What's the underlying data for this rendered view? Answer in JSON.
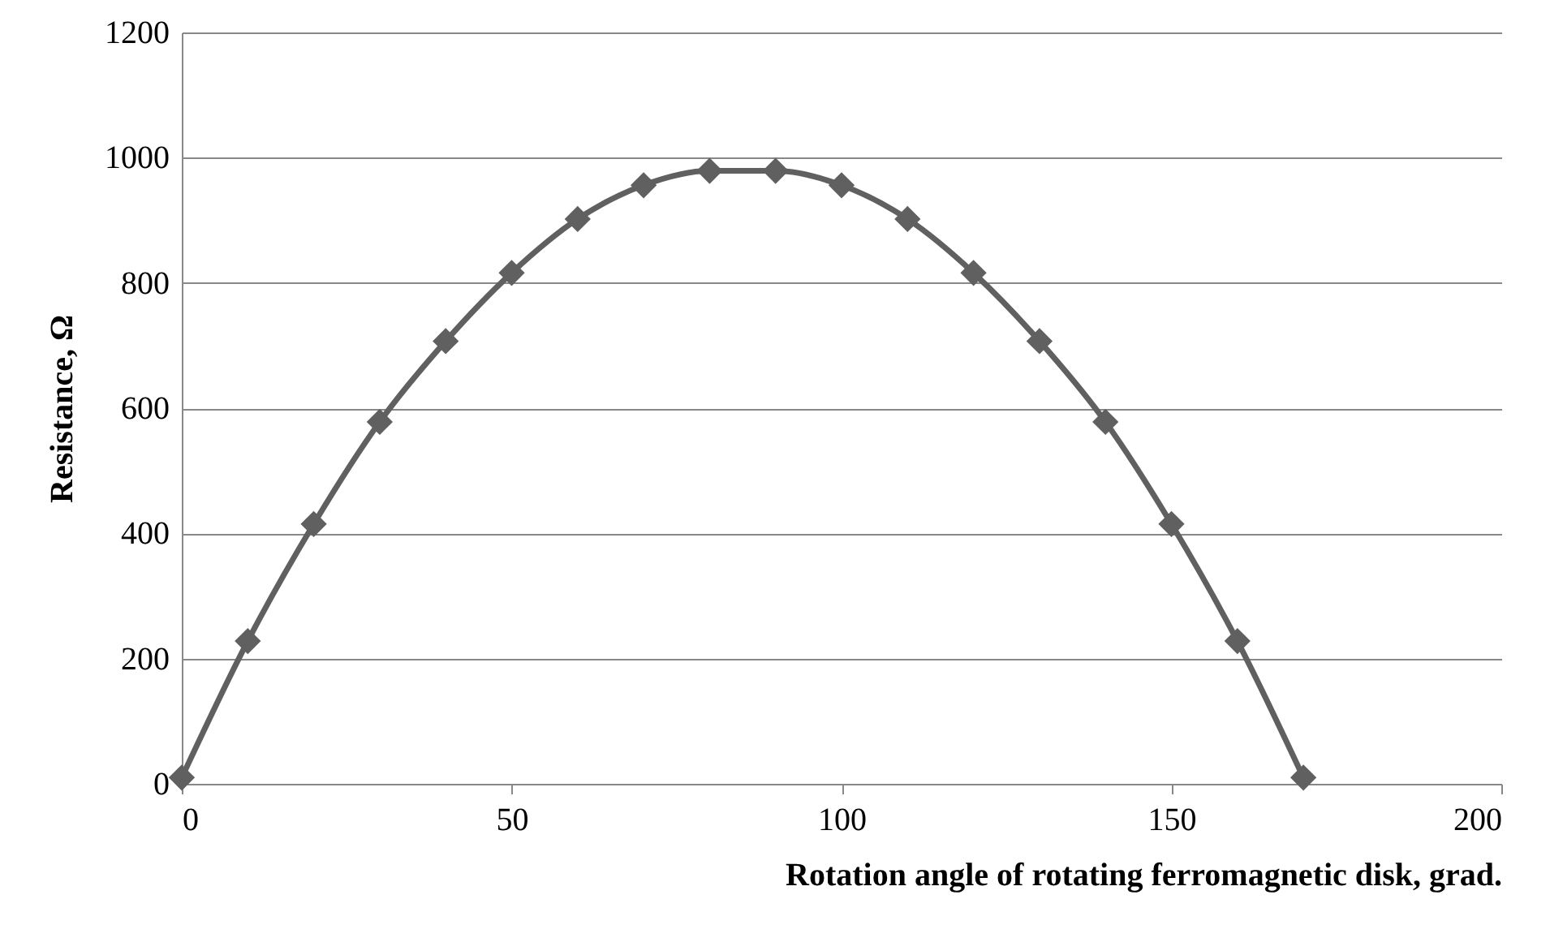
{
  "chart_data": {
    "type": "line",
    "xlabel": "Rotation angle of rotating  ferromagnetic  disk, grad.",
    "ylabel": "Resistance, Ω",
    "x": [
      0,
      10,
      20,
      30,
      40,
      50,
      60,
      70,
      80,
      90,
      100,
      110,
      120,
      130,
      140,
      150,
      160,
      170
    ],
    "series": [
      {
        "color": "#606060",
        "values": [
          10,
          228,
          415,
          578,
          707,
          816,
          902,
          956,
          979,
          979,
          956,
          902,
          816,
          707,
          578,
          415,
          228,
          10
        ]
      }
    ],
    "xlim": [
      0,
      200
    ],
    "xticks": [
      0,
      50,
      100,
      150,
      200
    ],
    "ylim": [
      0,
      1200
    ],
    "yticks": [
      0,
      200,
      400,
      600,
      800,
      1000,
      1200
    ],
    "grid": "y",
    "marker": "diamond",
    "line_style": "solid",
    "legend": false
  }
}
